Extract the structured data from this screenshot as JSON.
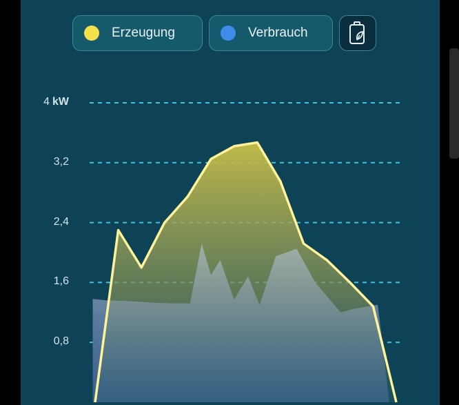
{
  "legend": {
    "production": {
      "label": "Erzeugung",
      "color": "#f4e04b"
    },
    "consumption": {
      "label": "Verbrauch",
      "color": "#3f8bea"
    },
    "battery_icon": "battery-leaf-icon"
  },
  "chart_data": {
    "type": "area",
    "y_unit": "kW",
    "ylim": [
      0,
      4
    ],
    "y_ticks": [
      {
        "value": 4,
        "label": "4"
      },
      {
        "value": 3.2,
        "label": "3,2"
      },
      {
        "value": 2.4,
        "label": "2,4"
      },
      {
        "value": 1.6,
        "label": "1,6"
      },
      {
        "value": 0.8,
        "label": "0,8"
      }
    ],
    "grid": "dashed horizontal",
    "series": [
      {
        "name": "Erzeugung",
        "color": "#f4e04b",
        "points": [
          [
            0,
            0
          ],
          [
            1,
            2.3
          ],
          [
            2,
            1.8
          ],
          [
            3,
            2.4
          ],
          [
            4,
            2.75
          ],
          [
            5,
            3.25
          ],
          [
            6,
            3.42
          ],
          [
            7,
            3.47
          ],
          [
            8,
            2.95
          ],
          [
            9,
            2.12
          ],
          [
            10,
            1.9
          ],
          [
            11,
            1.6
          ],
          [
            12,
            1.28
          ],
          [
            13,
            0
          ]
        ]
      },
      {
        "name": "Verbrauch",
        "color": "#3f8bea",
        "points": [
          [
            -0.1,
            1.38
          ],
          [
            0.5,
            1.36
          ],
          [
            1.5,
            1.35
          ],
          [
            2.5,
            1.33
          ],
          [
            3.5,
            1.32
          ],
          [
            4.1,
            1.32
          ],
          [
            4.6,
            2.12
          ],
          [
            5.0,
            1.7
          ],
          [
            5.4,
            1.9
          ],
          [
            6.0,
            1.37
          ],
          [
            6.6,
            1.68
          ],
          [
            7.1,
            1.3
          ],
          [
            7.8,
            1.95
          ],
          [
            8.7,
            2.05
          ],
          [
            9.5,
            1.6
          ],
          [
            10.6,
            1.2
          ],
          [
            11.2,
            1.25
          ],
          [
            12.2,
            1.3
          ],
          [
            12.7,
            0
          ]
        ]
      }
    ]
  }
}
